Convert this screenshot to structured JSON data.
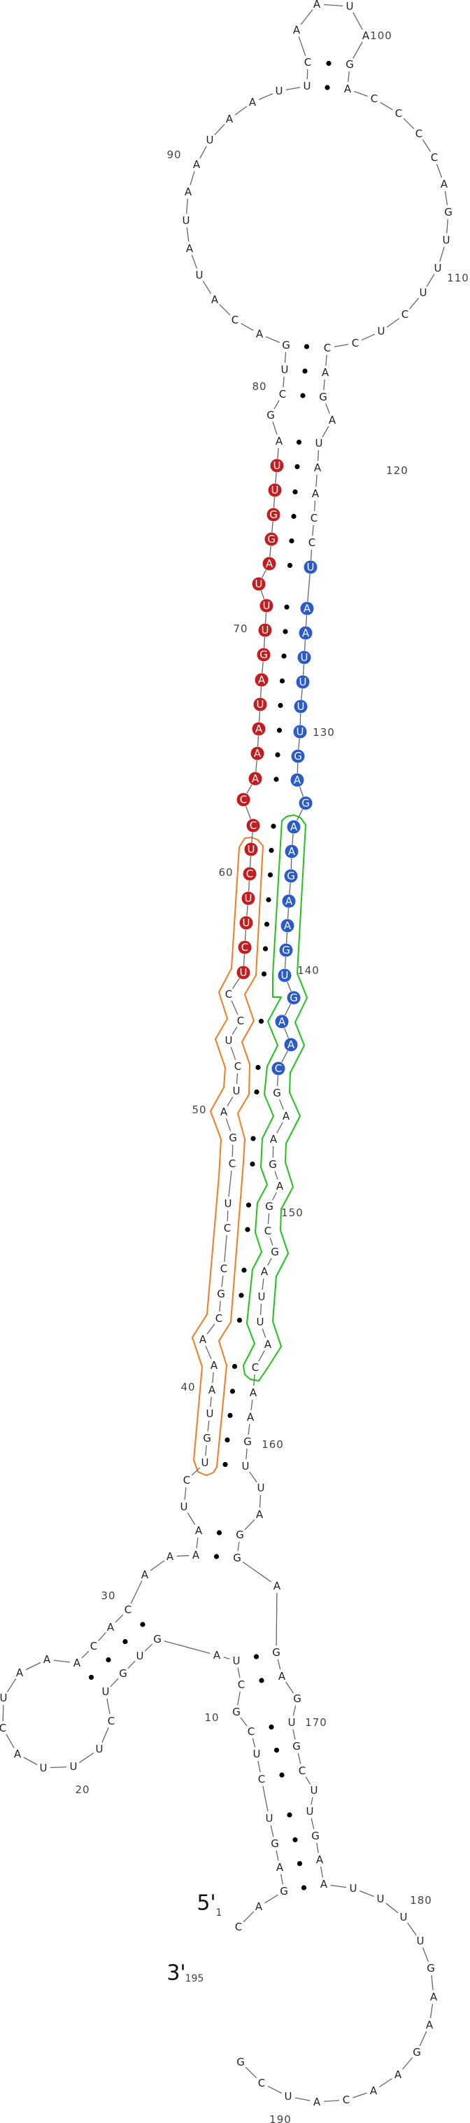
{
  "structure": {
    "sequence": "CAGAGUCUCGCUAGUGUCUUUACUAAACACAAAAUCUGUAAACGCCUCGAUCUCCUCUUCUCCAAAUAGUUUAGGUUAGCUGACAUAUAAUAAUUCAAUAGACCCCAGUUUCUCCAGAUAACCUAAUUUUGAGAAGAAGUGAACGAAGAGCGAUUACAAGUUAGGAGAGUGCUUGAAUUUUGAAGAACAUCG",
    "pairs": [
      [
        3,
        177
      ],
      [
        4,
        176
      ],
      [
        5,
        175
      ],
      [
        6,
        174
      ],
      [
        7,
        172
      ],
      [
        8,
        171
      ],
      [
        9,
        170
      ],
      [
        11,
        168
      ],
      [
        12,
        167
      ],
      [
        14,
        30
      ],
      [
        15,
        29
      ],
      [
        16,
        28
      ],
      [
        17,
        27
      ],
      [
        33,
        165
      ],
      [
        34,
        164
      ],
      [
        37,
        161
      ],
      [
        38,
        160
      ],
      [
        39,
        159
      ],
      [
        40,
        158
      ],
      [
        41,
        157
      ],
      [
        43,
        155
      ],
      [
        44,
        154
      ],
      [
        45,
        153
      ],
      [
        46,
        151
      ],
      [
        47,
        150
      ],
      [
        48,
        148
      ],
      [
        49,
        147
      ],
      [
        51,
        145
      ],
      [
        52,
        144
      ],
      [
        54,
        142
      ],
      [
        56,
        140
      ],
      [
        57,
        139
      ],
      [
        58,
        138
      ],
      [
        59,
        137
      ],
      [
        60,
        136
      ],
      [
        61,
        135
      ],
      [
        62,
        134
      ],
      [
        64,
        132
      ],
      [
        65,
        131
      ],
      [
        66,
        130
      ],
      [
        67,
        129
      ],
      [
        68,
        128
      ],
      [
        69,
        127
      ],
      [
        70,
        126
      ],
      [
        71,
        125
      ],
      [
        73,
        124
      ],
      [
        74,
        123
      ],
      [
        75,
        122
      ],
      [
        76,
        121
      ],
      [
        77,
        120
      ],
      [
        78,
        119
      ],
      [
        80,
        117
      ],
      [
        81,
        116
      ],
      [
        82,
        115
      ],
      [
        95,
        102
      ],
      [
        96,
        101
      ]
    ],
    "highlighted_ranges": [
      {
        "from": 56,
        "to": 77,
        "color": "#c41d1f"
      },
      {
        "from": 124,
        "to": 144,
        "color": "#2a5bc9"
      }
    ],
    "outlined_regions": [
      {
        "from": 37,
        "to": 61,
        "color": "#f47b20"
      },
      {
        "from": 134,
        "to": 157,
        "color": "#1fc41a"
      }
    ],
    "position_labels": [
      "10",
      "20",
      "30",
      "40",
      "50",
      "60",
      "70",
      "80",
      "90",
      "100",
      "110",
      "120",
      "130",
      "140",
      "150",
      "160",
      "170",
      "180",
      "190"
    ],
    "five_prime": {
      "label": "5'",
      "index": "1"
    },
    "three_prime": {
      "label": "3'",
      "index": "195"
    },
    "backbone_color": "#666666",
    "pair_dot_color": "#000000"
  }
}
